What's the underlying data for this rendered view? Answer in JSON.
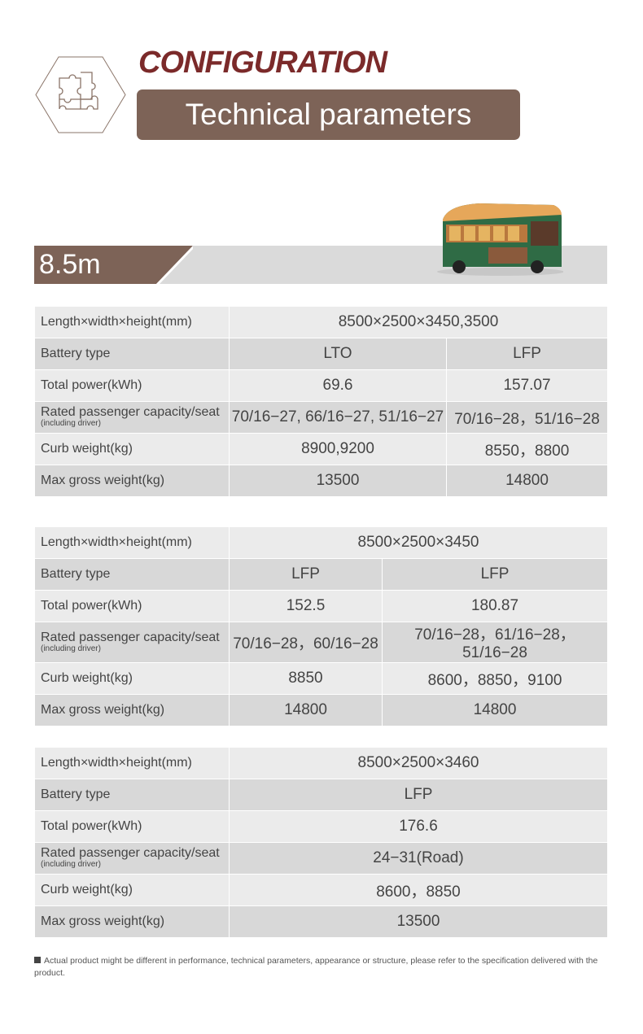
{
  "header": {
    "title": "CONFIGURATION",
    "subtitle": "Technical parameters",
    "icon": "puzzle-icon",
    "accent": "#7b2a2a",
    "bar_color": "#7d6357"
  },
  "section": {
    "label": "8.5m"
  },
  "tables": [
    {
      "cols": [
        239,
        267,
        198
      ],
      "rows": [
        {
          "label": "Length×width×height(mm)",
          "cells": [
            {
              "v": "8500×2500×3450,3500",
              "span": 2
            }
          ]
        },
        {
          "label": "Battery type",
          "cells": [
            {
              "v": "LTO"
            },
            {
              "v": "LFP"
            }
          ]
        },
        {
          "label": "Total power(kWh)",
          "cells": [
            {
              "v": "69.6"
            },
            {
              "v": "157.07"
            }
          ]
        },
        {
          "label": "Rated passenger capacity/seat",
          "sub": "(including driver)",
          "cells": [
            {
              "v": "70/16−27, 66/16−27, 51/16−27"
            },
            {
              "v": "70/16−28，51/16−28"
            }
          ]
        },
        {
          "label": "Curb weight(kg)",
          "cells": [
            {
              "v": "8900,9200"
            },
            {
              "v": "8550，8800"
            }
          ]
        },
        {
          "label": "Max gross weight(kg)",
          "cells": [
            {
              "v": "13500"
            },
            {
              "v": "14800"
            }
          ]
        }
      ]
    },
    {
      "cols": [
        239,
        188,
        277
      ],
      "rows": [
        {
          "label": "Length×width×height(mm)",
          "cells": [
            {
              "v": "8500×2500×3450",
              "span": 2
            }
          ]
        },
        {
          "label": "Battery type",
          "cells": [
            {
              "v": "LFP"
            },
            {
              "v": "LFP"
            }
          ]
        },
        {
          "label": "Total power(kWh)",
          "cells": [
            {
              "v": "152.5"
            },
            {
              "v": "180.87"
            }
          ]
        },
        {
          "label": "Rated passenger capacity/seat",
          "sub": "(including driver)",
          "cells": [
            {
              "v": "70/16−28，60/16−28"
            },
            {
              "v": "70/16−28，61/16−28，51/16−28"
            }
          ]
        },
        {
          "label": "Curb weight(kg)",
          "cells": [
            {
              "v": "8850"
            },
            {
              "v": "8600，8850，9100"
            }
          ]
        },
        {
          "label": "Max gross weight(kg)",
          "cells": [
            {
              "v": "14800"
            },
            {
              "v": "14800"
            }
          ]
        }
      ]
    },
    {
      "cols": [
        239,
        465
      ],
      "rows": [
        {
          "label": "Length×width×height(mm)",
          "cells": [
            {
              "v": "8500×2500×3460"
            }
          ]
        },
        {
          "label": "Battery type",
          "cells": [
            {
              "v": "LFP"
            }
          ]
        },
        {
          "label": "Total power(kWh)",
          "cells": [
            {
              "v": "176.6"
            }
          ]
        },
        {
          "label": "Rated passenger capacity/seat",
          "sub": "(including driver)",
          "cells": [
            {
              "v": "24−31(Road)"
            }
          ]
        },
        {
          "label": "Curb weight(kg)",
          "cells": [
            {
              "v": "8600，8850"
            }
          ]
        },
        {
          "label": "Max gross weight(kg)",
          "cells": [
            {
              "v": "13500"
            }
          ]
        }
      ]
    }
  ],
  "footer": {
    "note": "Actual product might be different in performance, technical parameters, appearance or structure, please refer to the specification delivered with the product."
  }
}
